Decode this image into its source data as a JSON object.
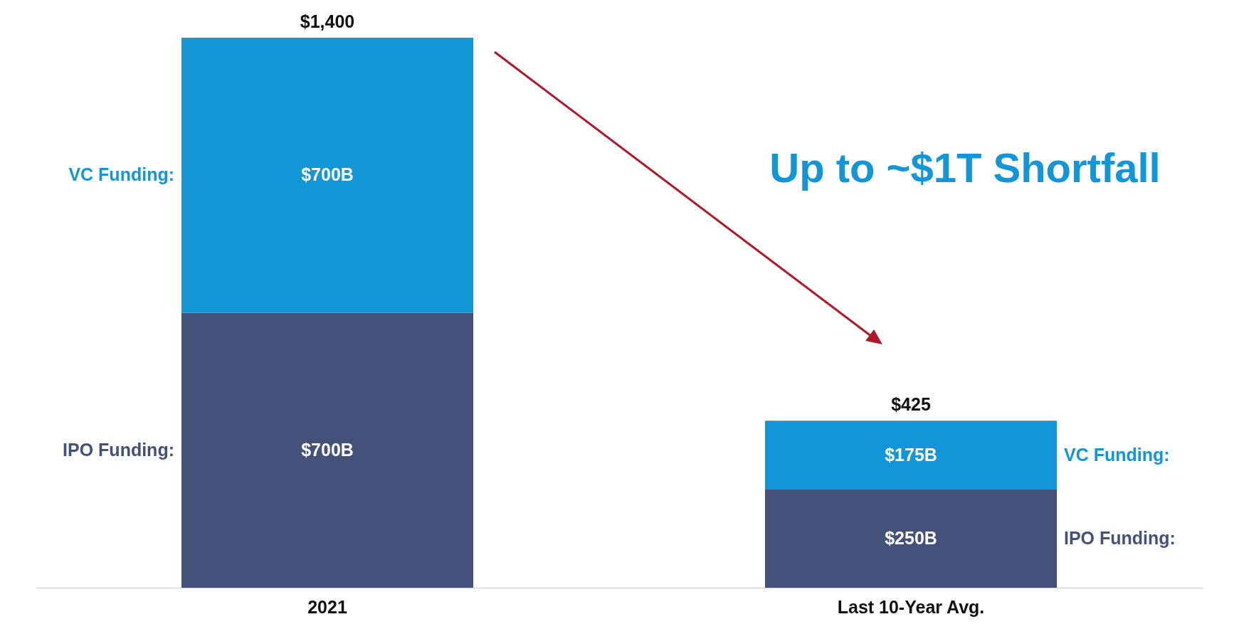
{
  "chart_data": {
    "type": "bar",
    "stacked": true,
    "categories": [
      "2021",
      "Last 10-Year Avg."
    ],
    "series": [
      {
        "name": "IPO Funding:",
        "color": "#44527a",
        "values": [
          700,
          250
        ],
        "value_labels": [
          "$700B",
          "$250B"
        ]
      },
      {
        "name": "VC Funding:",
        "color": "#1296d8",
        "values": [
          700,
          175
        ],
        "value_labels": [
          "$700B",
          "$175B"
        ]
      }
    ],
    "totals": [
      "$1,400",
      "$425"
    ],
    "annotations": [
      "Up to ~$1T Shortfall"
    ]
  }
}
